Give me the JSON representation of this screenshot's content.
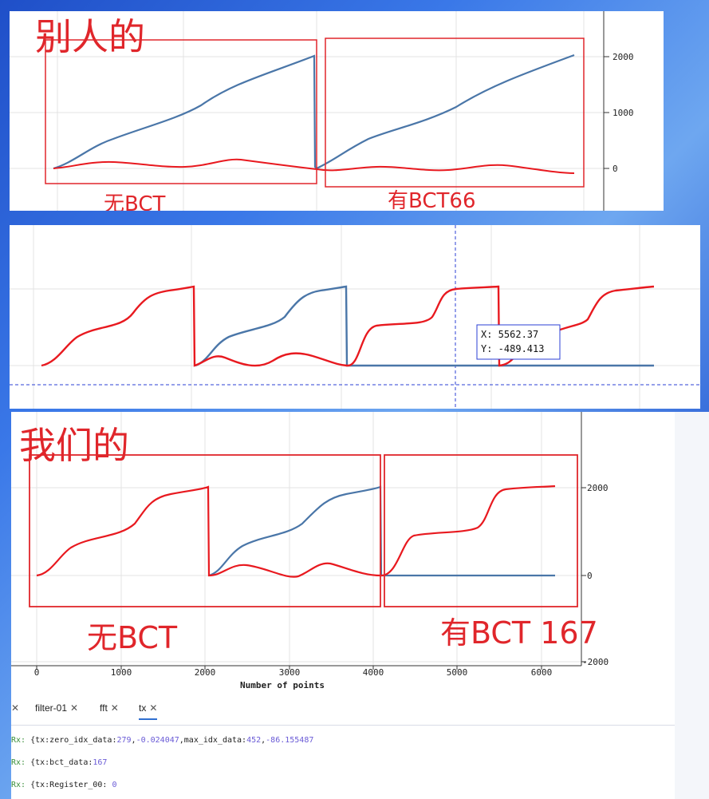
{
  "panel1": {
    "title": "别人的",
    "box_left_label": "无BCT",
    "box_right_label": "有BCT66",
    "y_ticks": [
      "2000",
      "1000",
      "0"
    ]
  },
  "panel2": {
    "cursor_x": "X: 5562.37",
    "cursor_y": "Y: -489.413"
  },
  "panel3": {
    "title": "我们的",
    "box_left_label": "无BCT",
    "box_right_label": "有BCT 167",
    "y_ticks": [
      "2000",
      "0",
      "-2000"
    ],
    "x_ticks": [
      "0",
      "1000",
      "2000",
      "3000",
      "4000",
      "5000",
      "6000"
    ],
    "xlabel": "Number of points"
  },
  "console": {
    "tabs": [
      {
        "label": "filter-01"
      },
      {
        "label": "fft"
      },
      {
        "label": "tx"
      }
    ],
    "lines": [
      {
        "prefix": "Rx: ",
        "brace": "{",
        "k1": "tx:zero_idx_data:",
        "v1": "279",
        "s1": ",",
        "v2": "-0.024047",
        "s2": ",max_idx_data:",
        "v3": "452",
        "s3": ",",
        "v4": "-86.155487"
      },
      {
        "prefix": "Rx: ",
        "brace": "{",
        "k1": "tx:bct_data:",
        "v1": "167"
      },
      {
        "prefix": "Rx: ",
        "brace": "{",
        "k1": "tx:Register_00: ",
        "v1": "0"
      }
    ]
  },
  "colors": {
    "annotation_red": "#e0262b",
    "series_blue": "#4a76a8",
    "series_red": "#e8191f",
    "cursor_blue": "#2b3fd6"
  }
}
